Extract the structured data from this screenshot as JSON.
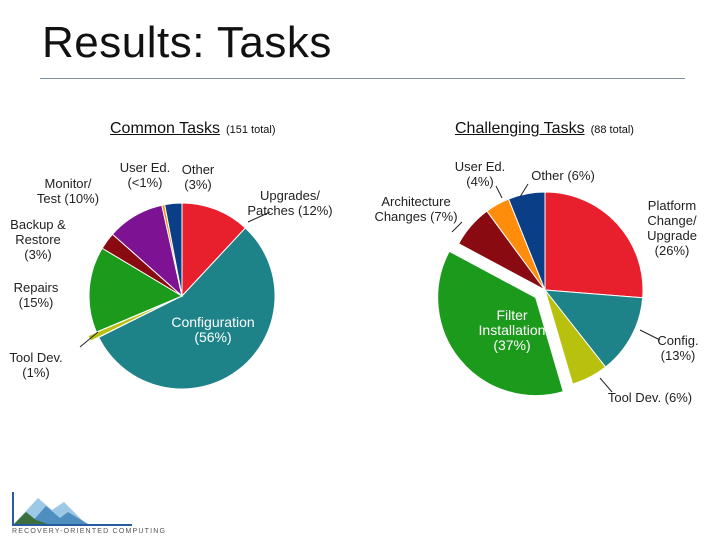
{
  "slide": {
    "title": "Results:  Tasks"
  },
  "colors": {
    "red": "#e8202e",
    "teal": "#1e8389",
    "yellowgreen": "#b8c10e",
    "green": "#1b9a1b",
    "darkred": "#8a0a12",
    "purple": "#7d1393",
    "orange": "#ff8c0a",
    "navy": "#0a3e86"
  },
  "chart_data": [
    {
      "type": "pie",
      "title": "Common Tasks",
      "subtitle": "(151 total)",
      "slices": [
        {
          "label": "Upgrades/ Patches (12%)",
          "value": 12,
          "color": "#e8202e",
          "label_lines": [
            "Upgrades/",
            "Patches (12%)"
          ]
        },
        {
          "label": "Configuration (56%)",
          "value": 56,
          "color": "#1e8389",
          "label_lines": [
            "Configuration",
            "(56%)"
          ]
        },
        {
          "label": "Tool Dev. (1%)",
          "value": 1,
          "color": "#b8c10e",
          "exploded": true,
          "label_lines": [
            "Tool Dev.",
            "(1%)"
          ]
        },
        {
          "label": "Repairs (15%)",
          "value": 15,
          "color": "#1b9a1b",
          "label_lines": [
            "Repairs",
            "(15%)"
          ]
        },
        {
          "label": "Backup & Restore (3%)",
          "value": 3,
          "color": "#8a0a12",
          "label_lines": [
            "Backup &",
            "Restore",
            "(3%)"
          ]
        },
        {
          "label": "Monitor/ Test (10%)",
          "value": 10,
          "color": "#7d1393",
          "label_lines": [
            "Monitor/",
            "Test (10%)"
          ]
        },
        {
          "label": "User Ed. (<1%)",
          "value": 0.5,
          "color": "#ff8c0a",
          "label_lines": [
            "User Ed.",
            "(<1%)"
          ]
        },
        {
          "label": "Other (3%)",
          "value": 3,
          "color": "#0a3e86",
          "label_lines": [
            "Other",
            "(3%)"
          ]
        }
      ]
    },
    {
      "type": "pie",
      "title": "Challenging Tasks",
      "subtitle": "(88 total)",
      "slices": [
        {
          "label": "Platform Change/ Upgrade (26%)",
          "value": 26,
          "color": "#e8202e",
          "label_lines": [
            "Platform",
            "Change/",
            "Upgrade",
            "(26%)"
          ]
        },
        {
          "label": "Config. (13%)",
          "value": 13,
          "color": "#1e8389",
          "label_lines": [
            "Config.",
            "(13%)"
          ]
        },
        {
          "label": "Tool Dev. (6%)",
          "value": 6,
          "color": "#b8c10e",
          "label_lines": [
            "Tool Dev. (6%)"
          ]
        },
        {
          "label": "Filter Installation (37%)",
          "value": 37,
          "color": "#1b9a1b",
          "exploded": true,
          "label_lines": [
            "Filter",
            "Installation",
            "(37%)"
          ]
        },
        {
          "label": "Architecture Changes (7%)",
          "value": 7,
          "color": "#8a0a12",
          "label_lines": [
            "Architecture",
            "Changes (7%)"
          ]
        },
        {
          "label": "User Ed. (4%)",
          "value": 4,
          "color": "#ff8c0a",
          "label_lines": [
            "User Ed.",
            "(4%)"
          ]
        },
        {
          "label": "Other (6%)",
          "value": 6,
          "color": "#0a3e86",
          "label_lines": [
            "Other (6%)"
          ]
        }
      ]
    }
  ],
  "logo": {
    "text": "RECOVERY-ORIENTED COMPUTING"
  }
}
